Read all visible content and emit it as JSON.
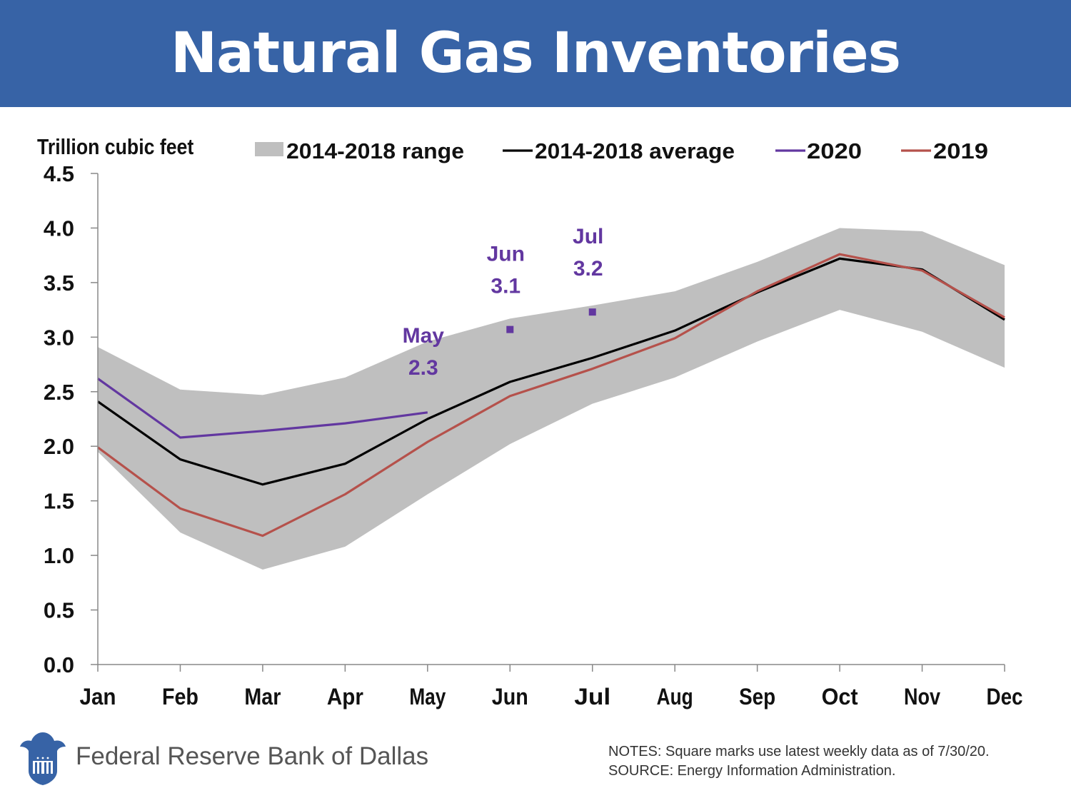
{
  "header": {
    "title": "Natural Gas Inventories"
  },
  "chart_data": {
    "type": "line",
    "title": "Natural Gas Inventories",
    "ylabel": "Trillion cubic feet",
    "xlabel": "",
    "ylim": [
      0,
      4.5
    ],
    "yticks": [
      "0.0",
      "0.5",
      "1.0",
      "1.5",
      "2.0",
      "2.5",
      "3.0",
      "3.5",
      "4.0",
      "4.5"
    ],
    "categories": [
      "Jan",
      "Feb",
      "Mar",
      "Apr",
      "May",
      "Jun",
      "Jul",
      "Aug",
      "Sep",
      "Oct",
      "Nov",
      "Dec"
    ],
    "range": {
      "name": "2014-2018 range",
      "color": "#bfbfbf",
      "low": [
        1.95,
        1.21,
        0.87,
        1.08,
        1.56,
        2.02,
        2.39,
        2.63,
        2.96,
        3.25,
        3.05,
        2.72
      ],
      "high": [
        2.91,
        2.52,
        2.47,
        2.63,
        2.96,
        3.17,
        3.29,
        3.42,
        3.69,
        4.0,
        3.97,
        3.66
      ]
    },
    "series": [
      {
        "name": "2014-2018 average",
        "color": "#000000",
        "values": [
          2.41,
          1.88,
          1.65,
          1.84,
          2.25,
          2.59,
          2.81,
          3.06,
          3.41,
          3.72,
          3.62,
          3.16
        ]
      },
      {
        "name": "2020",
        "color": "#6237a0",
        "values": [
          2.62,
          2.08,
          2.14,
          2.21,
          2.31,
          null,
          null,
          null,
          null,
          null,
          null,
          null
        ]
      },
      {
        "name": "2019",
        "color": "#b5514b",
        "values": [
          1.99,
          1.43,
          1.18,
          1.56,
          2.04,
          2.46,
          2.71,
          2.99,
          3.42,
          3.76,
          3.61,
          3.18
        ]
      }
    ],
    "latest_points": [
      {
        "month": "Jun",
        "value": 3.07
      },
      {
        "month": "Jul",
        "value": 3.23
      }
    ],
    "annotations": [
      {
        "month_label": "May",
        "value_label": "2.3",
        "anchor": "May",
        "y": 2.95
      },
      {
        "month_label": "Jun",
        "value_label": "3.1",
        "anchor": "Jun",
        "y": 3.7
      },
      {
        "month_label": "Jul",
        "value_label": "3.2",
        "anchor": "Jul",
        "y": 3.86
      }
    ],
    "annotation_color": "#6237a0"
  },
  "footer": {
    "org_name": "Federal Reserve Bank of Dallas",
    "notes": "NOTES: Square marks use latest weekly data as of 7/30/20.",
    "source": "SOURCE: Energy Information Administration."
  }
}
